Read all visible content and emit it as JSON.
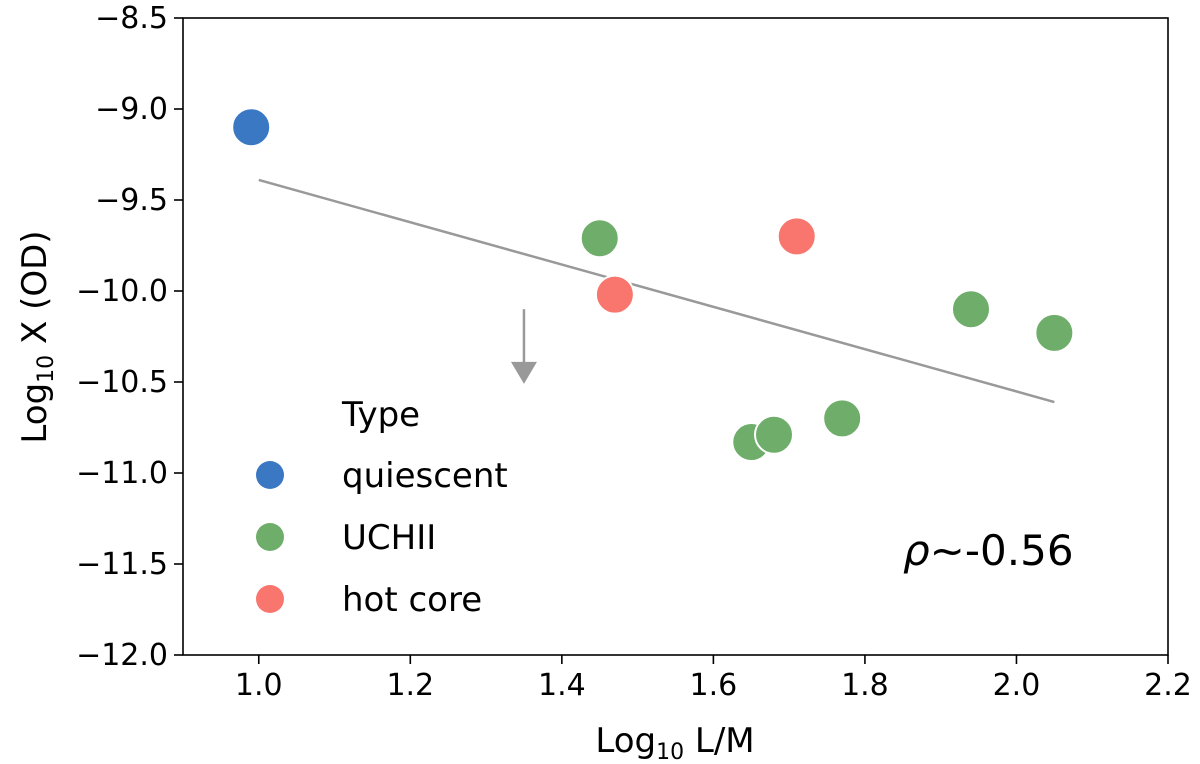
{
  "chart_data": {
    "type": "scatter",
    "xlabel_main": "Log",
    "xlabel_sub": "10",
    "xlabel_rest": " L/M",
    "ylabel_main": "Log",
    "ylabel_sub": "10",
    "ylabel_rest": " X (OD)",
    "xlim": [
      0.9,
      2.2
    ],
    "ylim": [
      -12.0,
      -8.5
    ],
    "xticks": [
      1.0,
      1.2,
      1.4,
      1.6,
      1.8,
      2.0,
      2.2
    ],
    "xtick_labels": [
      "1.0",
      "1.2",
      "1.4",
      "1.6",
      "1.8",
      "2.0",
      "2.2"
    ],
    "yticks": [
      -8.5,
      -9.0,
      -9.5,
      -10.0,
      -10.5,
      -11.0,
      -11.5,
      -12.0
    ],
    "ytick_labels": [
      "−8.5",
      "−9.0",
      "−9.5",
      "−10.0",
      "−10.5",
      "−11.0",
      "−11.5",
      "−12.0"
    ],
    "series": [
      {
        "name": "quiescent",
        "color": "#3a78c3",
        "points": [
          {
            "x": 0.99,
            "y": -9.1
          }
        ]
      },
      {
        "name": "UCHII",
        "color": "#6fad6a",
        "points": [
          {
            "x": 1.45,
            "y": -9.71
          },
          {
            "x": 1.65,
            "y": -10.83
          },
          {
            "x": 1.68,
            "y": -10.79
          },
          {
            "x": 1.77,
            "y": -10.7
          },
          {
            "x": 1.94,
            "y": -10.1
          },
          {
            "x": 2.05,
            "y": -10.23
          }
        ]
      },
      {
        "name": "hot core",
        "color": "#f8766d",
        "points": [
          {
            "x": 1.47,
            "y": -10.02
          },
          {
            "x": 1.71,
            "y": -9.7
          }
        ]
      }
    ],
    "fit_line": {
      "color": "#999999",
      "x": [
        1.0,
        2.05
      ],
      "y": [
        -9.39,
        -10.61
      ]
    },
    "upper_limit_arrow": {
      "color": "#999999",
      "x": 1.35,
      "y_start": -10.1,
      "y_end": -10.51
    },
    "legend": {
      "title": "Type",
      "position": "lower-left"
    },
    "annotation": {
      "rho_symbol": "ρ",
      "text": "~-0.56",
      "position": "lower-right"
    }
  }
}
